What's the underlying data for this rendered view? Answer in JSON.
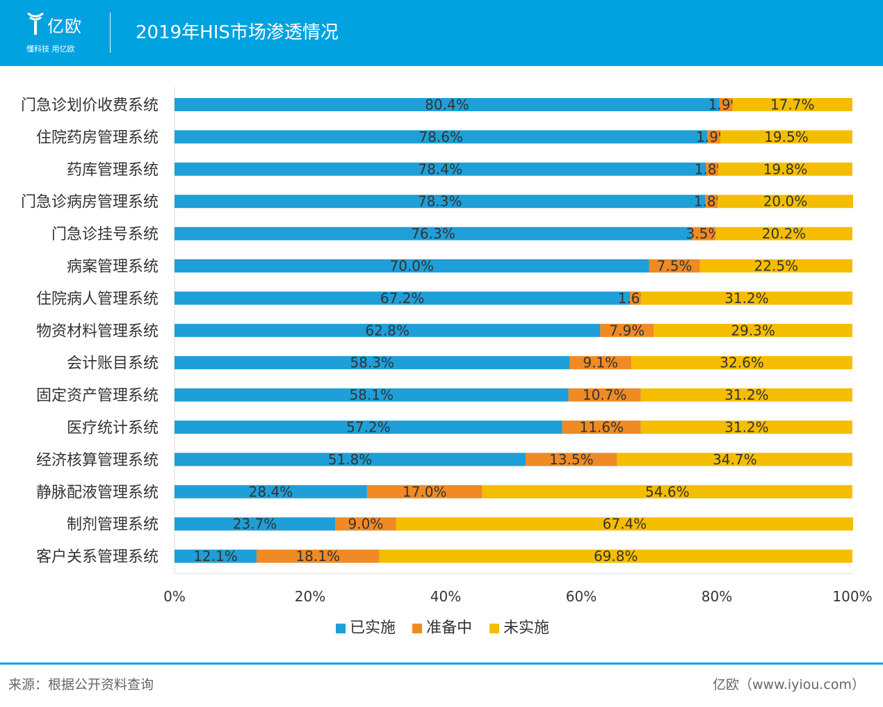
{
  "header": {
    "logo_name": "亿欧",
    "logo_slogan": "懂科技 用亿欧",
    "title": "2019年HIS市场渗透情况"
  },
  "footer": {
    "source": "来源：根据公开资料查询",
    "brand": "亿欧（www.iyiou.com）"
  },
  "colors": {
    "header_bg": "#00a2e0",
    "implemented": "#1e9fd7",
    "preparing": "#f08a24",
    "not_implemented": "#f5bd00"
  },
  "chart_data": {
    "type": "bar",
    "orientation": "horizontal",
    "stacked": true,
    "title": "2019年HIS市场渗透情况",
    "categories": [
      "门急诊划价收费系统",
      "住院药房管理系统",
      "药库管理系统",
      "门急诊病房管理系统",
      "门急诊挂号系统",
      "病案管理系统",
      "住院病人管理系统",
      "物资材料管理系统",
      "会计账目系统",
      "固定资产管理系统",
      "医疗统计系统",
      "经济核算管理系统",
      "静脉配液管理系统",
      "制剂管理系统",
      "客户关系管理系统"
    ],
    "series": [
      {
        "name": "已实施",
        "color": "#1e9fd7",
        "values": [
          80.4,
          78.6,
          78.4,
          78.3,
          76.3,
          70.0,
          67.2,
          62.8,
          58.3,
          58.1,
          57.2,
          51.8,
          28.4,
          23.7,
          12.1
        ],
        "labels": [
          "80.4%",
          "78.6%",
          "78.4%",
          "78.3%",
          "76.3%",
          "70.0%",
          "67.2%",
          "62.8%",
          "58.3%",
          "58.1%",
          "57.2%",
          "51.8%",
          "28.4%",
          "23.7%",
          "12.1%"
        ]
      },
      {
        "name": "准备中",
        "color": "#f08a24",
        "values": [
          1.9,
          1.9,
          1.8,
          1.8,
          3.5,
          7.5,
          1.6,
          7.9,
          9.1,
          10.7,
          11.6,
          13.5,
          17.0,
          9.0,
          18.1
        ],
        "labels": [
          "1.9%",
          "1.9%",
          "1.8%",
          "1.8%",
          "3.5%",
          "7.5%",
          "1.6%",
          "7.9%",
          "9.1%",
          "10.7%",
          "11.6%",
          "13.5%",
          "17.0%",
          "9.0%",
          "18.1%"
        ]
      },
      {
        "name": "未实施",
        "color": "#f5bd00",
        "values": [
          17.7,
          19.5,
          19.8,
          20.0,
          20.2,
          22.5,
          31.2,
          29.3,
          32.6,
          31.2,
          31.2,
          34.7,
          54.6,
          67.4,
          69.8
        ],
        "labels": [
          "17.7%",
          "19.5%",
          "19.8%",
          "20.0%",
          "20.2%",
          "22.5%",
          "31.2%",
          "29.3%",
          "32.6%",
          "31.2%",
          "31.2%",
          "34.7%",
          "54.6%",
          "67.4%",
          "69.8%"
        ]
      }
    ],
    "xlim": [
      0,
      100
    ],
    "xticks": [
      0,
      20,
      40,
      60,
      80,
      100
    ],
    "xtick_labels": [
      "0%",
      "20%",
      "40%",
      "60%",
      "80%",
      "100%"
    ],
    "legend": [
      "已实施",
      "准备中",
      "未实施"
    ],
    "legend_position": "bottom",
    "grid": false
  }
}
